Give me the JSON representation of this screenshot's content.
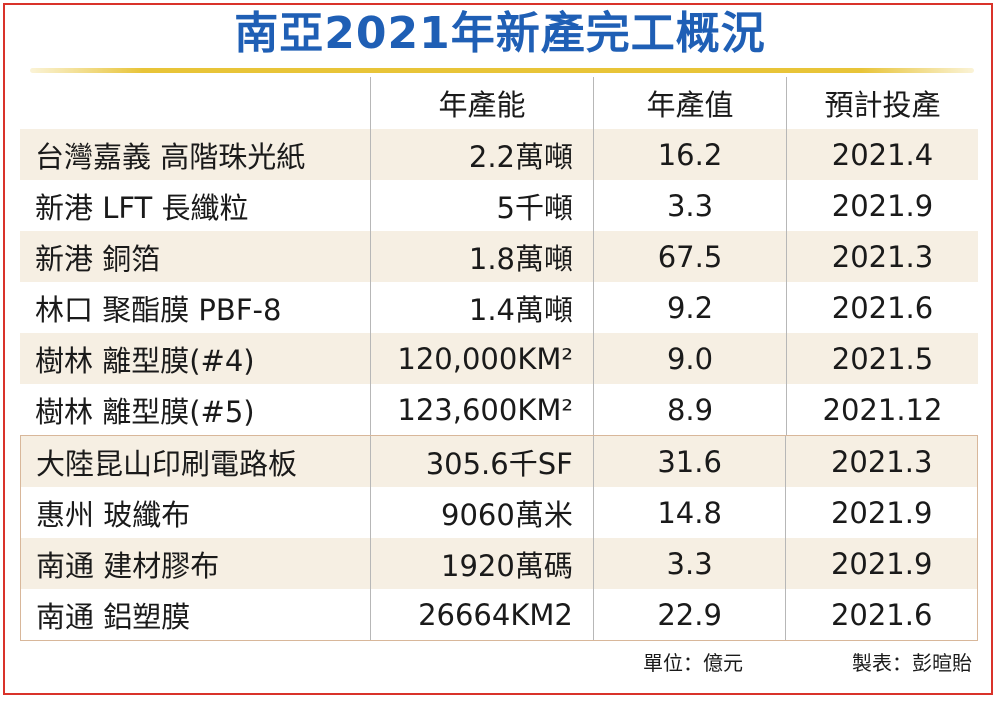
{
  "title": "南亞2021年新產完工概況",
  "table": {
    "headers": [
      "",
      "年產能",
      "年產值",
      "預計投產"
    ],
    "rows": [
      {
        "name": "台灣嘉義 高階珠光紙",
        "capacity": "2.2萬噸",
        "value": "16.2",
        "date": "2021.4"
      },
      {
        "name": "新港 LFT 長纖粒",
        "capacity": "5千噸",
        "value": "3.3",
        "date": "2021.9"
      },
      {
        "name": "新港 銅箔",
        "capacity": "1.8萬噸",
        "value": "67.5",
        "date": "2021.3"
      },
      {
        "name": "林口 聚酯膜 PBF-8",
        "capacity": "1.4萬噸",
        "value": "9.2",
        "date": "2021.6"
      },
      {
        "name": "樹林 離型膜(#4)",
        "capacity": "120,000KM²",
        "value": "9.0",
        "date": "2021.5"
      },
      {
        "name": "樹林 離型膜(#5)",
        "capacity": "123,600KM²",
        "value": "8.9",
        "date": "2021.12"
      },
      {
        "name": "大陸昆山印刷電路板",
        "capacity": "305.6千SF",
        "value": "31.6",
        "date": "2021.3"
      },
      {
        "name": "惠州 玻纖布",
        "capacity": "9060萬米",
        "value": "14.8",
        "date": "2021.9"
      },
      {
        "name": "南通 建材膠布",
        "capacity": "1920萬碼",
        "value": "3.3",
        "date": "2021.9"
      },
      {
        "name": "南通 鋁塑膜",
        "capacity": "26664KM2",
        "value": "22.9",
        "date": "2021.6"
      }
    ]
  },
  "footer": {
    "unit": "單位：億元",
    "credit": "製表：彭暄貽"
  },
  "colors": {
    "title": "#1f5fb5",
    "accent_line": "#e8c438",
    "border": "#d9332a",
    "row_shade": "#f6efe3"
  }
}
